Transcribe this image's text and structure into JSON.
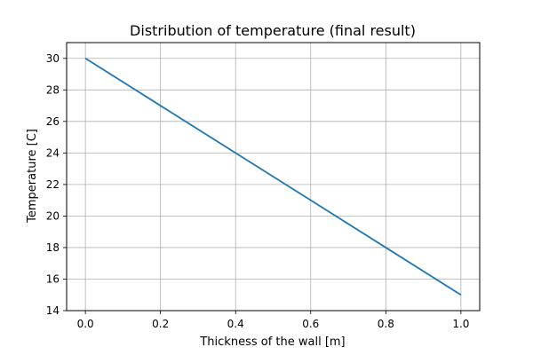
{
  "chart_data": {
    "type": "line",
    "title": "Distribution of temperature (final result)",
    "xlabel": "Thickness of the wall [m]",
    "ylabel": "Temperature [C]",
    "xlim": [
      -0.05,
      1.05
    ],
    "ylim": [
      14,
      31
    ],
    "xticks": [
      0.0,
      0.2,
      0.4,
      0.6,
      0.8,
      1.0
    ],
    "xtick_labels": [
      "0.0",
      "0.2",
      "0.4",
      "0.6",
      "0.8",
      "1.0"
    ],
    "yticks": [
      14,
      16,
      18,
      20,
      22,
      24,
      26,
      28,
      30
    ],
    "ytick_labels": [
      "14",
      "16",
      "18",
      "20",
      "22",
      "24",
      "26",
      "28",
      "30"
    ],
    "grid": true,
    "series": [
      {
        "color": "#1f77b4",
        "x": [
          0.0,
          0.2,
          0.4,
          0.6,
          0.8,
          1.0
        ],
        "y": [
          30,
          27,
          24,
          21,
          18,
          15
        ]
      }
    ]
  }
}
